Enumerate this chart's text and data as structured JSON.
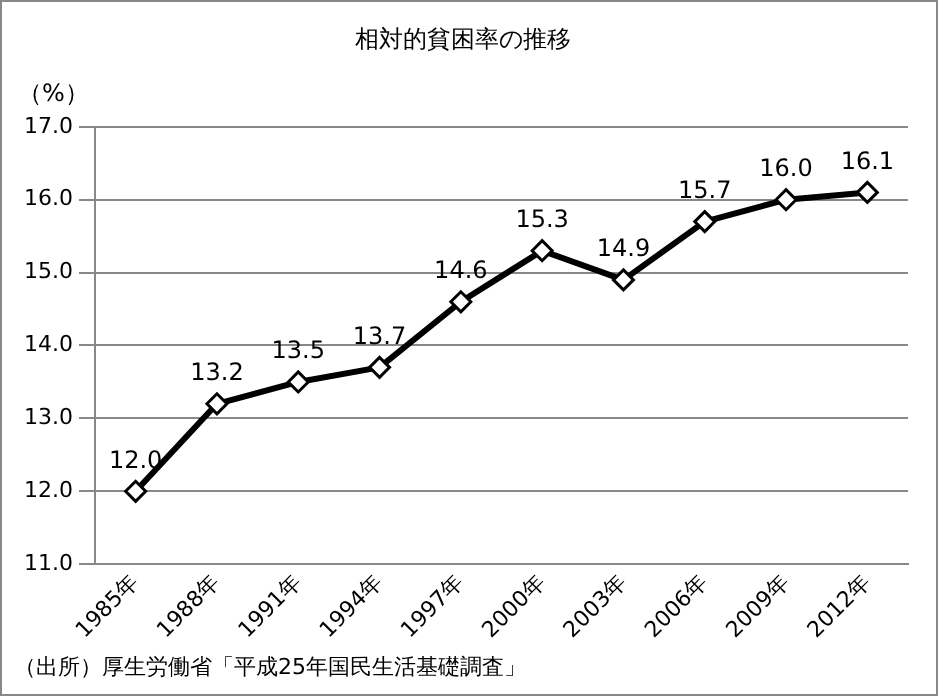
{
  "chart_data": {
    "type": "line",
    "title": "相対的貧困率の推移",
    "ylabel": "（%）",
    "categories": [
      "1985年",
      "1988年",
      "1991年",
      "1994年",
      "1997年",
      "2000年",
      "2003年",
      "2006年",
      "2009年",
      "2012年"
    ],
    "series": [
      {
        "color": "#000000",
        "values": [
          12.0,
          13.2,
          13.5,
          13.7,
          14.6,
          15.3,
          14.9,
          15.7,
          16.0,
          16.1
        ]
      }
    ],
    "value_labels": [
      "12.0",
      "13.2",
      "13.5",
      "13.7",
      "14.6",
      "15.3",
      "14.9",
      "15.7",
      "16.0",
      "16.1"
    ],
    "ylim": [
      11,
      17
    ],
    "yticks": [
      {
        "value": 11,
        "label": "11.0"
      },
      {
        "value": 12,
        "label": "12.0"
      },
      {
        "value": 13,
        "label": "13.0"
      },
      {
        "value": 14,
        "label": "14.0"
      },
      {
        "value": 15,
        "label": "15.0"
      },
      {
        "value": 16,
        "label": "16.0"
      },
      {
        "value": 17,
        "label": "17.0"
      }
    ],
    "grid": "y",
    "marker": "diamond",
    "line_style": "solid",
    "legend": false,
    "annotations": [
      "（出所）厚生労働省「平成25年国民生活基礎調査」"
    ]
  }
}
